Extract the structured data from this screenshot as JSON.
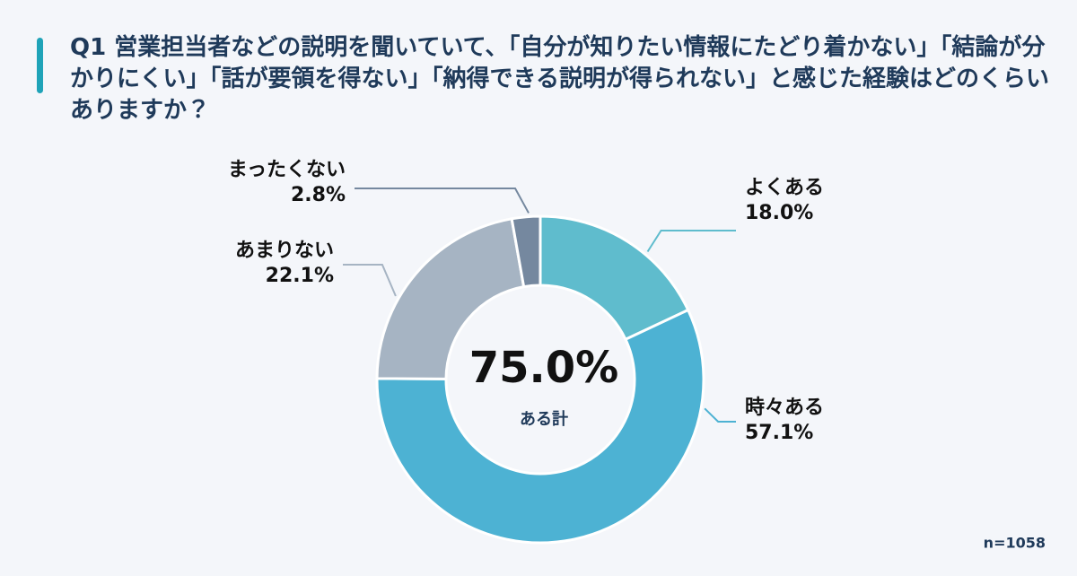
{
  "chart_data": {
    "type": "donut",
    "title": "Q1 営業担当者などの説明を聞いていて、「自分が知りたい情報にたどり着かない」「結論が分かりにくい」「話が要領を得ない」「納得できる説明が得られない」と感じた経験はどのくらいありますか？",
    "categories": [
      "よくある",
      "時々ある",
      "あまりない",
      "まったくない"
    ],
    "values": [
      18.0,
      57.1,
      22.1,
      2.8
    ],
    "value_labels": [
      "18.0%",
      "57.1%",
      "22.1%",
      "2.8%"
    ],
    "colors": [
      "#5fbccd",
      "#4db2d3",
      "#a6b4c3",
      "#75889f"
    ],
    "total": {
      "value": 75.0,
      "label": "75.0%",
      "caption": "ある計"
    },
    "note": "n=1058"
  }
}
